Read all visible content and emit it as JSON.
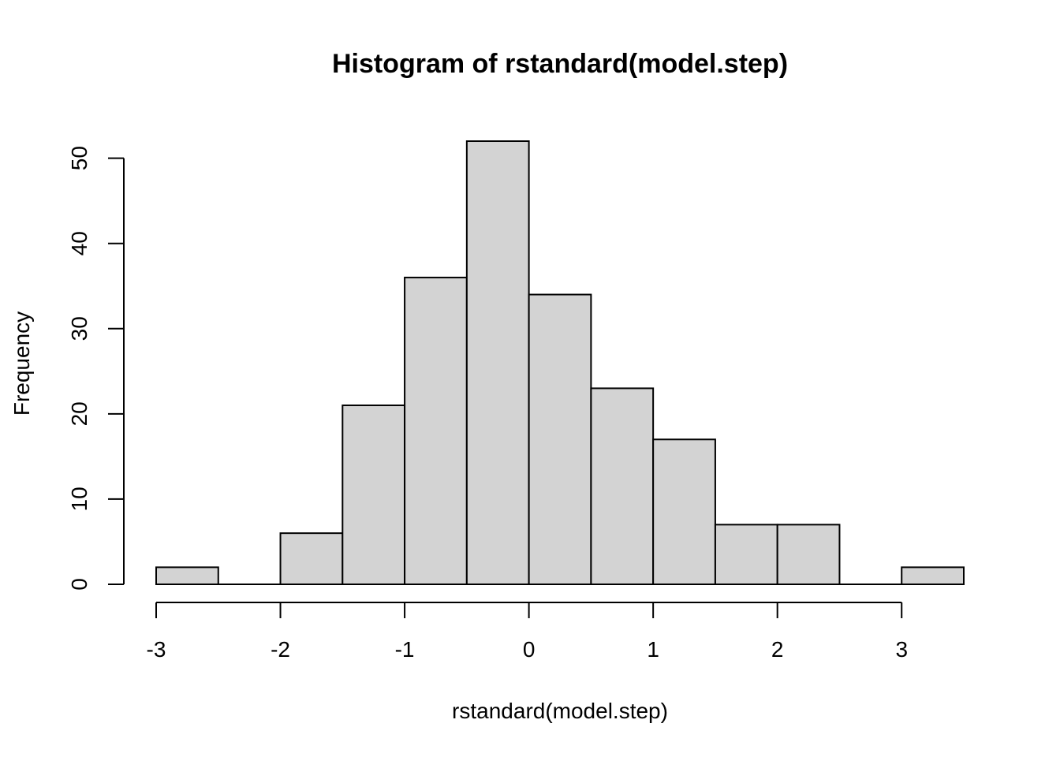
{
  "chart_data": {
    "type": "bar",
    "title": "Histogram of rstandard(model.step)",
    "xlabel": "rstandard(model.step)",
    "ylabel": "Frequency",
    "bin_edges": [
      -3,
      -2.5,
      -2,
      -1.5,
      -1,
      -0.5,
      0,
      0.5,
      1,
      1.5,
      2,
      2.5,
      3,
      3.5
    ],
    "values": [
      2,
      0,
      6,
      21,
      36,
      52,
      34,
      23,
      17,
      7,
      7,
      0,
      2
    ],
    "xlim": [
      -3,
      3.5
    ],
    "ylim": [
      0,
      52
    ],
    "x_ticks": [
      -3,
      -2,
      -1,
      0,
      1,
      2,
      3
    ],
    "y_ticks": [
      0,
      10,
      20,
      30,
      40,
      50
    ],
    "bar_color": "#d3d3d3",
    "grid": false,
    "legend": "none"
  }
}
